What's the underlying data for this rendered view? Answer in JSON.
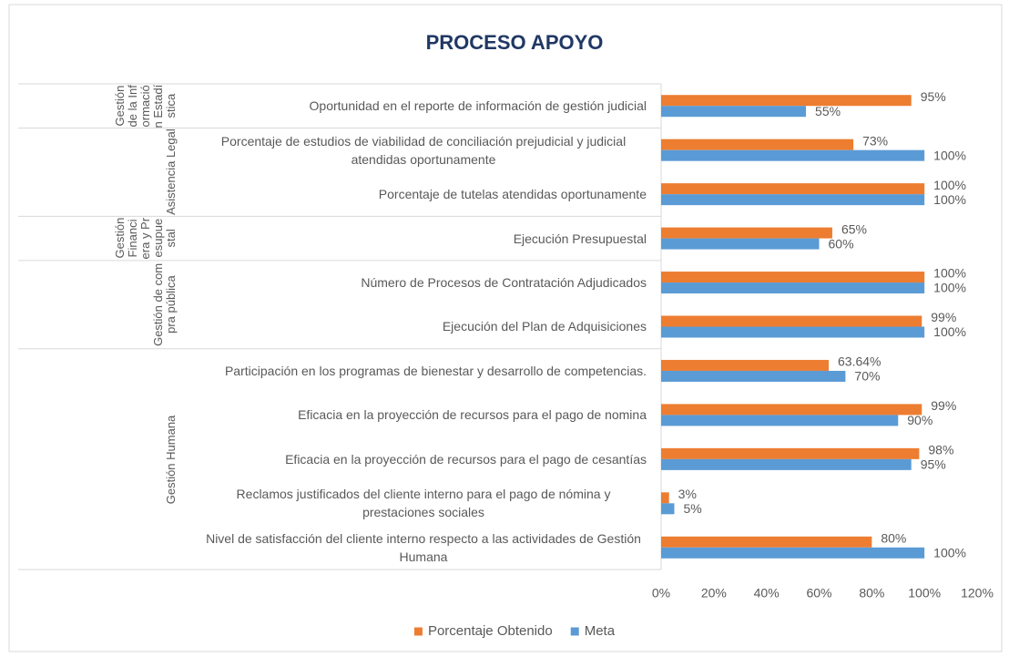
{
  "chart_data": {
    "type": "bar",
    "orientation": "horizontal",
    "title": "PROCESO APOYO",
    "groups": [
      {
        "name": "Gestión de la Información Estadística",
        "categories": [
          "Oportunidad en el reporte de información de gestión judicial"
        ]
      },
      {
        "name": "Asistencia Legal",
        "categories": [
          "Porcentaje de estudios de viabilidad de conciliación prejudicial y judicial atendidas oportunamente",
          "Porcentaje de tutelas atendidas oportunamente"
        ]
      },
      {
        "name": "Gestión Financiera y Presupuestal",
        "categories": [
          "Ejecución Presupuestal"
        ]
      },
      {
        "name": "Gestión de compra pública",
        "categories": [
          "Número de Procesos de Contratación Adjudicados",
          "Ejecución del Plan de Adquisiciones"
        ]
      },
      {
        "name": "Gestión Humana",
        "categories": [
          "Participación en los programas de bienestar y desarrollo de competencias.",
          "Eficacia en la proyección de recursos para el pago de nomina",
          "Eficacia en la proyección de recursos para el pago de cesantías",
          "Reclamos justificados del cliente interno para el pago de nómina y prestaciones sociales",
          "Nivel de satisfacción del cliente interno respecto a las actividades de Gestión Humana"
        ]
      }
    ],
    "series": [
      {
        "name": "Porcentaje Obtenido",
        "color": "#ED7D31",
        "values": [
          95,
          73,
          100,
          65,
          100,
          99,
          63.64,
          99,
          98,
          3,
          80
        ],
        "value_labels": [
          "95%",
          "73%",
          "100%",
          "65%",
          "100%",
          "99%",
          "63.64%",
          "99%",
          "98%",
          "3%",
          "80%"
        ]
      },
      {
        "name": "Meta",
        "color": "#5B9BD5",
        "values": [
          55,
          100,
          100,
          60,
          100,
          100,
          70,
          90,
          95,
          5,
          100
        ],
        "value_labels": [
          "55%",
          "100%",
          "100%",
          "60%",
          "100%",
          "100%",
          "70%",
          "90%",
          "95%",
          "5%",
          "100%"
        ]
      }
    ],
    "xlim": [
      0,
      120
    ],
    "xticks": [
      {
        "value": 0,
        "label": "0%"
      },
      {
        "value": 20,
        "label": "20%"
      },
      {
        "value": 40,
        "label": "40%"
      },
      {
        "value": 60,
        "label": "60%"
      },
      {
        "value": 80,
        "label": "80%"
      },
      {
        "value": 100,
        "label": "100%"
      },
      {
        "value": 120,
        "label": "120%"
      }
    ],
    "legend": "bottom"
  }
}
